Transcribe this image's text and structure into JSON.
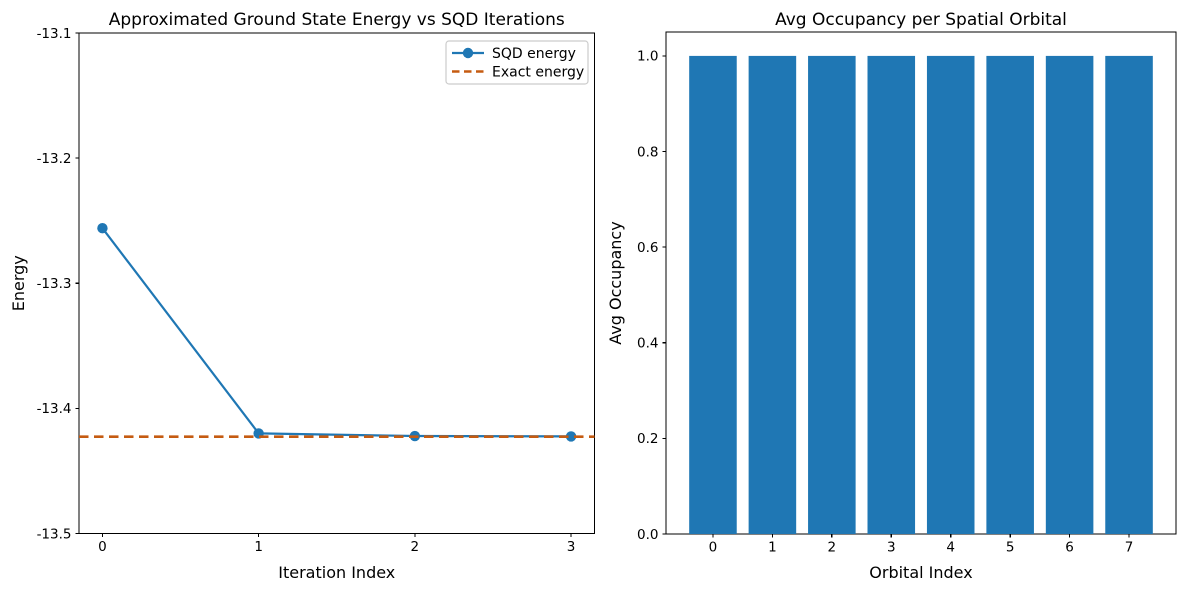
{
  "figure": {
    "background": "#ffffff",
    "text_color": "#000000",
    "spine_color": "#000000",
    "legend_border_color": "#cccccc"
  },
  "chart_data": [
    {
      "id": "energy-convergence",
      "type": "line",
      "title": "Approximated Ground State Energy vs SQD Iterations",
      "xlabel": "Iteration Index",
      "ylabel": "Energy",
      "xlim": [
        -0.15,
        3.15
      ],
      "ylim": [
        -13.5,
        -13.1
      ],
      "xticks": [
        0,
        1,
        2,
        3
      ],
      "xtick_labels": [
        "0",
        "1",
        "2",
        "3"
      ],
      "yticks": [
        -13.1,
        -13.2,
        -13.3,
        -13.4,
        -13.5
      ],
      "ytick_labels": [
        "-13.1",
        "-13.2",
        "-13.3",
        "-13.4",
        "-13.5"
      ],
      "grid": false,
      "legend": {
        "position": "upper right",
        "entries": [
          "SQD energy",
          "Exact energy"
        ]
      },
      "series": [
        {
          "name": "SQD energy",
          "style": "line-marker",
          "color": "#1f77b4",
          "x": [
            0,
            1,
            2,
            3
          ],
          "y": [
            -13.256,
            -13.42,
            -13.4221,
            -13.4224
          ]
        },
        {
          "name": "Exact energy",
          "style": "dashed-hline",
          "color": "#c55b11",
          "y": -13.4226
        }
      ]
    },
    {
      "id": "occupancy",
      "type": "bar",
      "title": "Avg Occupancy per Spatial Orbital",
      "xlabel": "Orbital Index",
      "ylabel": "Avg Occupancy",
      "categories": [
        "0",
        "1",
        "2",
        "3",
        "4",
        "5",
        "6",
        "7"
      ],
      "values": [
        1.0,
        1.0,
        1.0,
        1.0,
        1.0,
        1.0,
        1.0,
        1.0
      ],
      "bar_color": "#1f77b4",
      "bar_width": 0.8,
      "xlim": [
        -0.79,
        7.79
      ],
      "ylim": [
        0,
        1.05
      ],
      "yticks": [
        0.0,
        0.2,
        0.4,
        0.6,
        0.8,
        1.0
      ],
      "ytick_labels": [
        "0.0",
        "0.2",
        "0.4",
        "0.6",
        "0.8",
        "1.0"
      ],
      "grid": false,
      "legend": null
    }
  ]
}
